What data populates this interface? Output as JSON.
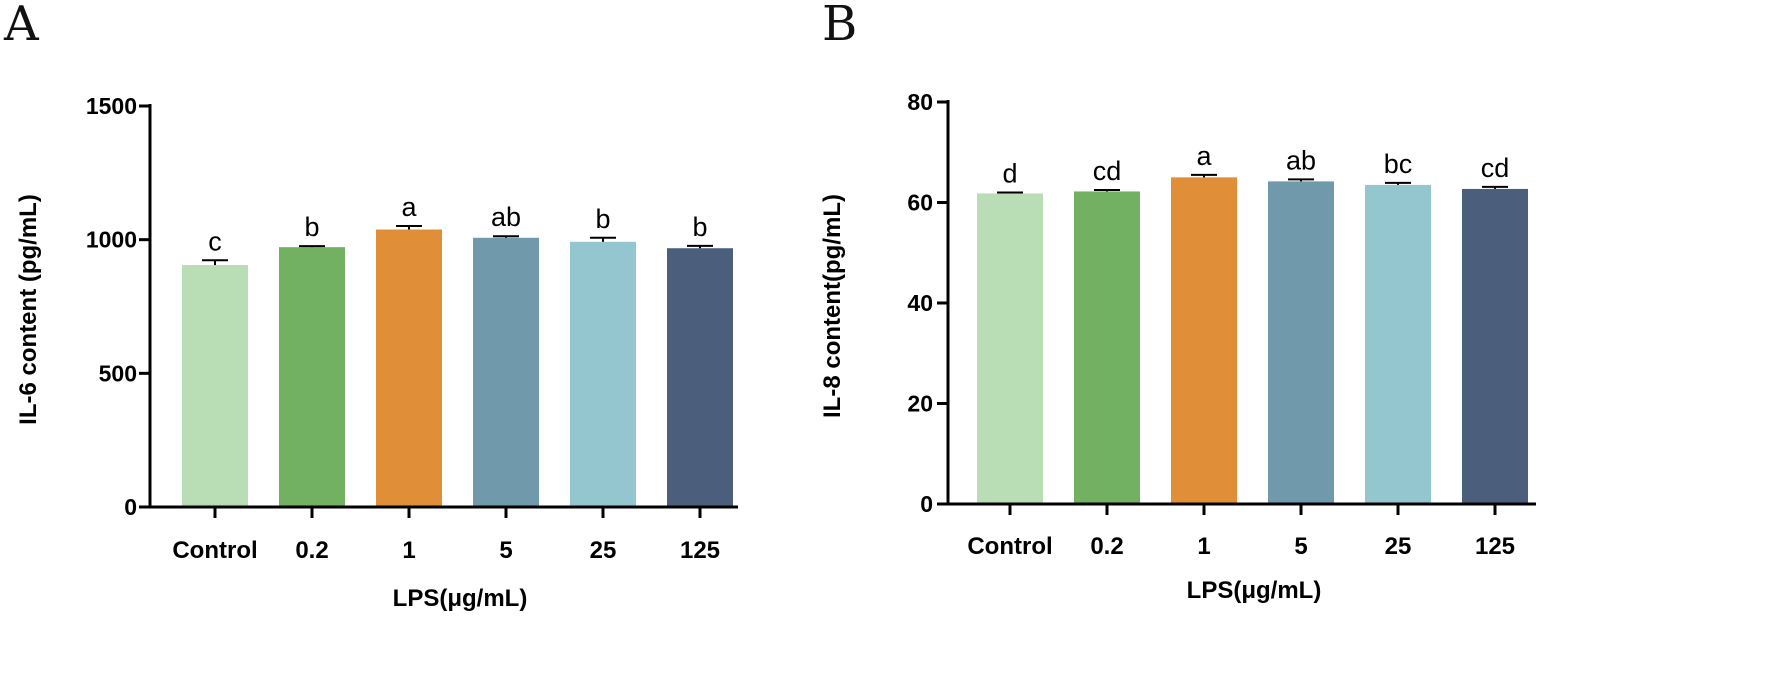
{
  "chart_data": [
    {
      "panel": "A",
      "type": "bar",
      "categories": [
        "Control",
        "0.2",
        "1",
        "5",
        "25",
        "125"
      ],
      "values": [
        905,
        972,
        1038,
        1007,
        992,
        968
      ],
      "errors": [
        18,
        4,
        13,
        6,
        15,
        9
      ],
      "significance": [
        "c",
        "b",
        "a",
        "ab",
        "b",
        "b"
      ],
      "colors": [
        "#b9ddb4",
        "#72b062",
        "#e08f38",
        "#7099ab",
        "#93c6ce",
        "#4b5f7d"
      ],
      "ylabel": "IL-6 content (pg/mL)",
      "xlabel": "LPS(μg/mL)",
      "ylim": [
        0,
        1500
      ],
      "yticks": [
        0,
        500,
        1000,
        1500
      ]
    },
    {
      "panel": "B",
      "type": "bar",
      "categories": [
        "Control",
        "0.2",
        "1",
        "5",
        "25",
        "125"
      ],
      "values": [
        61.8,
        62.2,
        65.0,
        64.2,
        63.5,
        62.7
      ],
      "errors": [
        0.2,
        0.3,
        0.5,
        0.4,
        0.4,
        0.4
      ],
      "significance": [
        "d",
        "cd",
        "a",
        "ab",
        "bc",
        "cd"
      ],
      "colors": [
        "#b9ddb4",
        "#72b062",
        "#e08f38",
        "#7099ab",
        "#93c6ce",
        "#4b5f7d"
      ],
      "ylabel": "IL-8 content(pg/mL)",
      "xlabel": "LPS(μg/mL)",
      "ylim": [
        0,
        80
      ],
      "yticks": [
        0,
        20,
        40,
        60,
        80
      ]
    }
  ]
}
